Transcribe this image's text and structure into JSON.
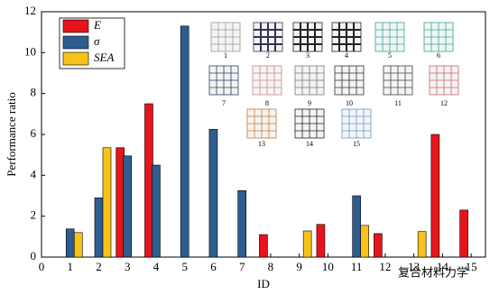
{
  "chart_data": {
    "type": "bar",
    "x_label": "ID",
    "y_label": "Performance ratio",
    "x": [
      1,
      2,
      3,
      4,
      5,
      6,
      7,
      8,
      9,
      10,
      11,
      12,
      13,
      14,
      15
    ],
    "series": [
      {
        "name": "E",
        "color": "#e8141b",
        "values": [
          null,
          null,
          5.35,
          7.5,
          null,
          null,
          null,
          1.1,
          null,
          1.6,
          null,
          1.15,
          null,
          6.0,
          2.3
        ]
      },
      {
        "name": "σ",
        "color": "#2f5d8f",
        "values": [
          1.38,
          2.9,
          4.95,
          4.5,
          11.3,
          6.25,
          3.25,
          null,
          null,
          null,
          3.0,
          null,
          null,
          null,
          null
        ]
      },
      {
        "name": "SEA",
        "color": "#f7c31a",
        "values": [
          1.2,
          5.35,
          null,
          null,
          null,
          null,
          null,
          null,
          1.28,
          null,
          1.55,
          null,
          1.25,
          null,
          null
        ]
      }
    ],
    "xlim": [
      0,
      15.5
    ],
    "xticks": [
      0,
      1,
      2,
      3,
      4,
      5,
      6,
      7,
      8,
      9,
      10,
      11,
      12,
      13,
      14,
      15
    ],
    "ylim": [
      0,
      12
    ],
    "yticks": [
      0,
      2,
      4,
      6,
      8,
      10,
      12
    ],
    "legend": "upper-left",
    "annotations": [
      "1",
      "2",
      "3",
      "4",
      "5",
      "6",
      "7",
      "8",
      "9",
      "10",
      "11",
      "12",
      "13",
      "14",
      "15"
    ],
    "watermark": "复合材料力学"
  }
}
